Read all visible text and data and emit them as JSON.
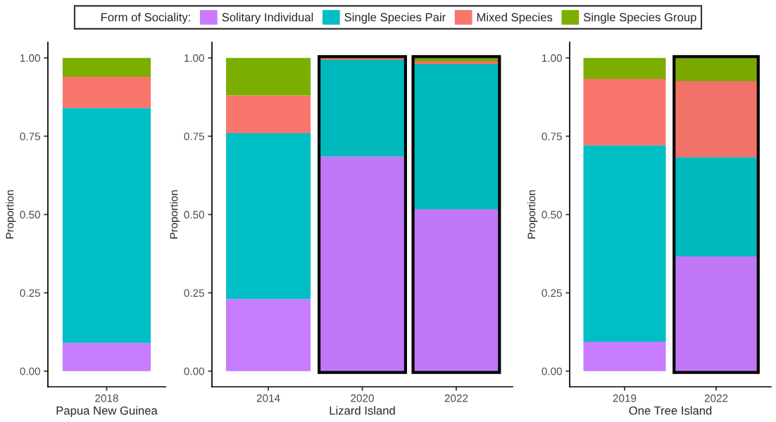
{
  "chart_data": [
    {
      "type": "bar",
      "stacked": true,
      "categories": [
        "2018"
      ],
      "xlabel": "Papua New Guinea",
      "ylabel": "Proportion",
      "ylim": [
        -0.05,
        1.05
      ],
      "yticks": [
        {
          "value": 0,
          "label": "0.00"
        },
        {
          "value": 0.25,
          "label": "0.25"
        },
        {
          "value": 0.5,
          "label": "0.50"
        },
        {
          "value": 0.75,
          "label": "0.75"
        },
        {
          "value": 1,
          "label": "1.00"
        }
      ],
      "legend": "top",
      "legend_title": "Form of Sociality:",
      "grid": false,
      "series": [
        {
          "name": "Solitary Individual",
          "color": "#c77cff",
          "values": [
            0.09
          ]
        },
        {
          "name": "Single Species Pair",
          "color": "#00bfc4",
          "values": [
            0.75
          ]
        },
        {
          "name": "Mixed Species",
          "color": "#f8766d",
          "values": [
            0.1
          ]
        },
        {
          "name": "Single Species Group",
          "color": "#7cae00",
          "values": [
            0.06
          ]
        }
      ]
    },
    {
      "type": "bar",
      "stacked": true,
      "categories": [
        "2014",
        "2020",
        "2022"
      ],
      "xlabel": "Lizard Island",
      "ylabel": "Proportion",
      "ylim": [
        -0.05,
        1.05
      ],
      "yticks": [
        {
          "value": 0,
          "label": "0.00"
        },
        {
          "value": 0.25,
          "label": "0.25"
        },
        {
          "value": 0.5,
          "label": "0.50"
        },
        {
          "value": 0.75,
          "label": "0.75"
        },
        {
          "value": 1,
          "label": "1.00"
        }
      ],
      "grid": false,
      "bands": [
        {
          "axis": "x",
          "from": "2020",
          "to": "2020",
          "color": "#000000"
        },
        {
          "axis": "x",
          "from": "2022",
          "to": "2022",
          "color": "#000000"
        }
      ],
      "series": [
        {
          "name": "Solitary Individual",
          "color": "#c77cff",
          "values": [
            0.23,
            0.685,
            0.517
          ]
        },
        {
          "name": "Single Species Pair",
          "color": "#00bfc4",
          "values": [
            0.53,
            0.309,
            0.463
          ]
        },
        {
          "name": "Mixed Species",
          "color": "#f8766d",
          "values": [
            0.12,
            0.006,
            0.009
          ]
        },
        {
          "name": "Single Species Group",
          "color": "#7cae00",
          "values": [
            0.12,
            0,
            0.011
          ]
        }
      ]
    },
    {
      "type": "bar",
      "stacked": true,
      "categories": [
        "2019",
        "2022"
      ],
      "xlabel": "One Tree Island",
      "ylabel": "Proportion",
      "ylim": [
        -0.05,
        1.05
      ],
      "yticks": [
        {
          "value": 0,
          "label": "0.00"
        },
        {
          "value": 0.25,
          "label": "0.25"
        },
        {
          "value": 0.5,
          "label": "0.50"
        },
        {
          "value": 0.75,
          "label": "0.75"
        },
        {
          "value": 1,
          "label": "1.00"
        }
      ],
      "grid": false,
      "bands": [
        {
          "axis": "x",
          "from": "2022",
          "to": "2022",
          "color": "#000000"
        }
      ],
      "series": [
        {
          "name": "Solitary Individual",
          "color": "#c77cff",
          "values": [
            0.094,
            0.366
          ]
        },
        {
          "name": "Single Species Pair",
          "color": "#00bfc4",
          "values": [
            0.627,
            0.317
          ]
        },
        {
          "name": "Mixed Species",
          "color": "#f8766d",
          "values": [
            0.212,
            0.243
          ]
        },
        {
          "name": "Single Species Group",
          "color": "#7cae00",
          "values": [
            0.067,
            0.074
          ]
        }
      ]
    }
  ]
}
